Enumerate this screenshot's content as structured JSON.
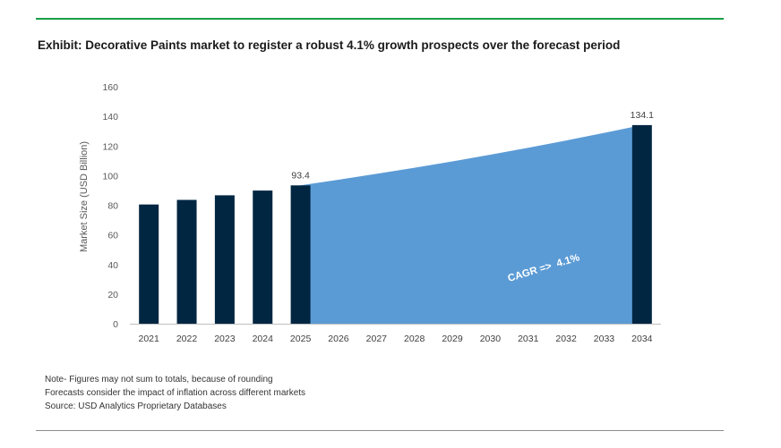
{
  "header": {
    "title": "Exhibit: Decorative Paints market to register a robust 4.1% growth prospects over the forecast period"
  },
  "chart_data": {
    "type": "bar",
    "title": "Exhibit: Decorative Paints market to register a robust 4.1% growth prospects over the forecast period",
    "xlabel": "",
    "ylabel": "Market Size (USD Billion)",
    "ylim": [
      0,
      160
    ],
    "yticks": [
      0,
      20,
      40,
      60,
      80,
      100,
      120,
      140,
      160
    ],
    "categories": [
      "2021",
      "2022",
      "2023",
      "2024",
      "2025",
      "2026",
      "2027",
      "2028",
      "2029",
      "2030",
      "2031",
      "2032",
      "2033",
      "2034"
    ],
    "bars": [
      {
        "category": "2021",
        "value": 80.5
      },
      {
        "category": "2022",
        "value": 83.6
      },
      {
        "category": "2023",
        "value": 86.7
      },
      {
        "category": "2024",
        "value": 89.9
      },
      {
        "category": "2025",
        "value": 93.4,
        "label": "93.4"
      },
      {
        "category": "2034",
        "value": 134.1,
        "label": "134.1"
      }
    ],
    "forecast_area": {
      "categories": [
        "2025",
        "2026",
        "2027",
        "2028",
        "2029",
        "2030",
        "2031",
        "2032",
        "2033",
        "2034"
      ],
      "values": [
        93.4,
        97.2,
        101.2,
        105.3,
        109.6,
        114.1,
        118.8,
        123.7,
        128.8,
        134.1
      ]
    },
    "annotation": {
      "text": "CAGR =>  4.1%"
    },
    "grid": false,
    "legend": "none",
    "colors": {
      "bar": "#002642",
      "area": "#5b9bd5",
      "axis": "#bfbfbf",
      "tick_text": "#595959"
    }
  },
  "notes": [
    "Note- Figures may not sum to totals, because of rounding",
    "Forecasts consider the impact of inflation across different markets",
    "Source: USD Analytics Proprietary Databases"
  ],
  "colors": {
    "accent_rule": "#1a9e48",
    "bottom_rule": "#8c8c8c"
  }
}
